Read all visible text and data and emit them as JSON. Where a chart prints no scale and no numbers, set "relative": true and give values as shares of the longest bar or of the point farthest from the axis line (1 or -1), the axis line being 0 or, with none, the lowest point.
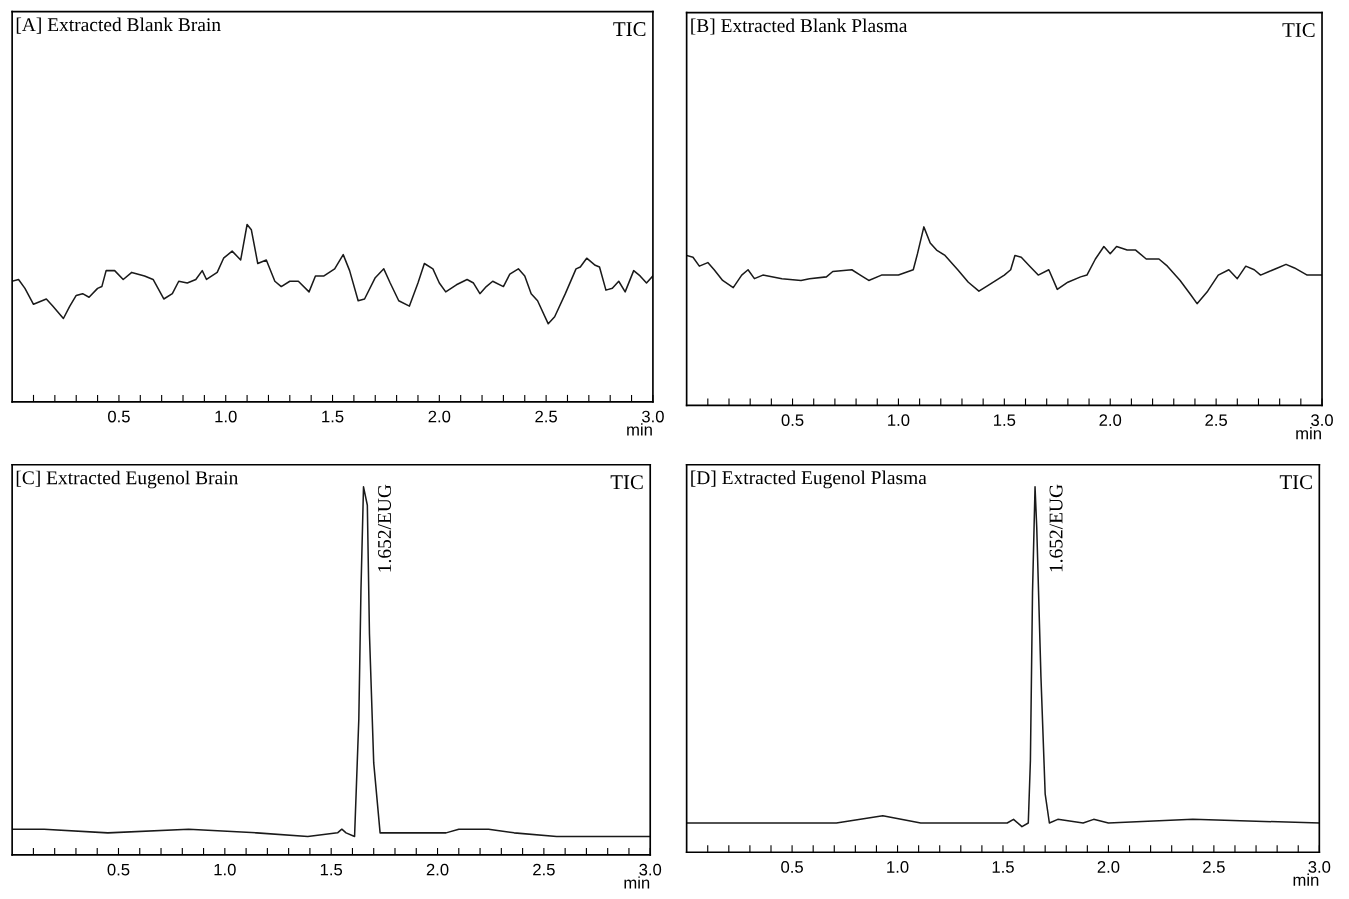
{
  "chart_data": [
    {
      "type": "line",
      "title": "[A] Extracted Blank Brain",
      "annotations": [
        "TIC"
      ],
      "xlabel": "min",
      "relative": true,
      "color": "#1a1a1a",
      "xlim": [
        0,
        3.0
      ],
      "xticks": [
        {
          "value": 0.1,
          "label": null
        },
        {
          "value": 0.2,
          "label": null
        },
        {
          "value": 0.3,
          "label": null
        },
        {
          "value": 0.4,
          "label": null
        },
        0.5,
        {
          "value": 0.6,
          "label": null
        },
        {
          "value": 0.7,
          "label": null
        },
        {
          "value": 0.8,
          "label": null
        },
        {
          "value": 0.9,
          "label": null
        },
        {
          "value": 1,
          "label": "1.0"
        },
        {
          "value": 1.1,
          "label": null
        },
        {
          "value": 1.2,
          "label": null
        },
        {
          "value": 1.3,
          "label": null
        },
        {
          "value": 1.4,
          "label": null
        },
        1.5,
        {
          "value": 1.6,
          "label": null
        },
        {
          "value": 1.7,
          "label": null
        },
        {
          "value": 1.8,
          "label": null
        },
        {
          "value": 1.9,
          "label": null
        },
        {
          "value": 2,
          "label": "2.0"
        },
        {
          "value": 2.1,
          "label": null
        },
        {
          "value": 2.2,
          "label": null
        },
        {
          "value": 2.3,
          "label": null
        },
        {
          "value": 2.4,
          "label": null
        },
        2.5,
        {
          "value": 2.6,
          "label": null
        },
        {
          "value": 2.7,
          "label": null
        },
        {
          "value": 2.8,
          "label": null
        },
        {
          "value": 2.9,
          "label": null
        },
        {
          "value": 3,
          "label": "3.0"
        }
      ],
      "x": [
        0.0,
        0.03,
        0.06,
        0.1,
        0.16,
        0.19,
        0.24,
        0.27,
        0.3,
        0.33,
        0.36,
        0.4,
        0.42,
        0.44,
        0.48,
        0.52,
        0.56,
        0.62,
        0.66,
        0.71,
        0.75,
        0.78,
        0.82,
        0.86,
        0.89,
        0.91,
        0.96,
        0.99,
        1.03,
        1.07,
        1.1,
        1.12,
        1.15,
        1.19,
        1.23,
        1.26,
        1.3,
        1.34,
        1.39,
        1.42,
        1.46,
        1.51,
        1.55,
        1.58,
        1.62,
        1.65,
        1.7,
        1.74,
        1.77,
        1.81,
        1.86,
        1.9,
        1.93,
        1.97,
        2.0,
        2.03,
        2.08,
        2.13,
        2.16,
        2.19,
        2.22,
        2.25,
        2.3,
        2.33,
        2.37,
        2.4,
        2.43,
        2.46,
        2.51,
        2.54,
        2.59,
        2.64,
        2.66,
        2.69,
        2.73,
        2.75,
        2.78,
        2.81,
        2.84,
        2.87,
        2.91,
        2.94,
        2.97,
        3.0
      ],
      "values": [
        0.68,
        0.69,
        0.64,
        0.55,
        0.58,
        0.54,
        0.47,
        0.54,
        0.6,
        0.61,
        0.59,
        0.64,
        0.65,
        0.74,
        0.74,
        0.69,
        0.73,
        0.71,
        0.69,
        0.58,
        0.61,
        0.68,
        0.67,
        0.69,
        0.74,
        0.69,
        0.73,
        0.81,
        0.85,
        0.8,
        1.0,
        0.97,
        0.78,
        0.8,
        0.68,
        0.65,
        0.68,
        0.68,
        0.62,
        0.71,
        0.71,
        0.75,
        0.83,
        0.74,
        0.57,
        0.58,
        0.7,
        0.75,
        0.67,
        0.57,
        0.54,
        0.67,
        0.78,
        0.75,
        0.67,
        0.62,
        0.66,
        0.69,
        0.67,
        0.61,
        0.65,
        0.68,
        0.65,
        0.72,
        0.75,
        0.71,
        0.61,
        0.57,
        0.44,
        0.48,
        0.61,
        0.75,
        0.76,
        0.81,
        0.77,
        0.76,
        0.63,
        0.64,
        0.68,
        0.62,
        0.74,
        0.71,
        0.67,
        0.71
      ]
    },
    {
      "type": "line",
      "title": "[B] Extracted Blank Plasma",
      "annotations": [
        "TIC"
      ],
      "xlabel": "min",
      "relative": true,
      "color": "#1a1a1a",
      "xlim": [
        0,
        3.0
      ],
      "xticks": [
        {
          "value": 0.1,
          "label": null
        },
        {
          "value": 0.2,
          "label": null
        },
        {
          "value": 0.3,
          "label": null
        },
        {
          "value": 0.4,
          "label": null
        },
        0.5,
        {
          "value": 0.6,
          "label": null
        },
        {
          "value": 0.7,
          "label": null
        },
        {
          "value": 0.8,
          "label": null
        },
        {
          "value": 0.9,
          "label": null
        },
        {
          "value": 1,
          "label": "1.0"
        },
        {
          "value": 1.1,
          "label": null
        },
        {
          "value": 1.2,
          "label": null
        },
        {
          "value": 1.3,
          "label": null
        },
        {
          "value": 1.4,
          "label": null
        },
        1.5,
        {
          "value": 1.6,
          "label": null
        },
        {
          "value": 1.7,
          "label": null
        },
        {
          "value": 1.8,
          "label": null
        },
        {
          "value": 1.9,
          "label": null
        },
        {
          "value": 2,
          "label": "2.0"
        },
        {
          "value": 2.1,
          "label": null
        },
        {
          "value": 2.2,
          "label": null
        },
        {
          "value": 2.3,
          "label": null
        },
        {
          "value": 2.4,
          "label": null
        },
        2.5,
        {
          "value": 2.6,
          "label": null
        },
        {
          "value": 2.7,
          "label": null
        },
        {
          "value": 2.8,
          "label": null
        },
        {
          "value": 2.9,
          "label": null
        },
        {
          "value": 3,
          "label": "3.0"
        }
      ],
      "x": [
        0.0,
        0.03,
        0.06,
        0.1,
        0.13,
        0.17,
        0.22,
        0.26,
        0.29,
        0.32,
        0.36,
        0.45,
        0.54,
        0.58,
        0.66,
        0.69,
        0.78,
        0.82,
        0.86,
        0.92,
        1.0,
        1.07,
        1.09,
        1.12,
        1.15,
        1.18,
        1.22,
        1.28,
        1.33,
        1.38,
        1.42,
        1.5,
        1.53,
        1.55,
        1.58,
        1.62,
        1.66,
        1.71,
        1.75,
        1.8,
        1.86,
        1.89,
        1.93,
        1.97,
        2.0,
        2.03,
        2.08,
        2.12,
        2.17,
        2.23,
        2.27,
        2.33,
        2.38,
        2.41,
        2.46,
        2.51,
        2.56,
        2.6,
        2.64,
        2.68,
        2.71,
        2.75,
        2.79,
        2.83,
        2.87,
        2.93,
        2.97,
        3.0
      ],
      "values": [
        0.84,
        0.83,
        0.78,
        0.8,
        0.76,
        0.7,
        0.66,
        0.73,
        0.76,
        0.71,
        0.73,
        0.71,
        0.7,
        0.71,
        0.72,
        0.75,
        0.76,
        0.73,
        0.7,
        0.73,
        0.73,
        0.76,
        0.85,
        1.0,
        0.91,
        0.87,
        0.84,
        0.76,
        0.69,
        0.64,
        0.67,
        0.73,
        0.76,
        0.84,
        0.83,
        0.78,
        0.73,
        0.76,
        0.65,
        0.69,
        0.72,
        0.73,
        0.82,
        0.89,
        0.85,
        0.89,
        0.87,
        0.87,
        0.82,
        0.82,
        0.78,
        0.7,
        0.62,
        0.57,
        0.64,
        0.73,
        0.76,
        0.71,
        0.78,
        0.76,
        0.73,
        0.75,
        0.77,
        0.79,
        0.77,
        0.73,
        0.73,
        0.73
      ]
    },
    {
      "type": "line",
      "title": "[C] Extracted Eugenol Brain",
      "annotations": [
        "TIC",
        {
          "text": "1.652/EUG",
          "x": 1.652,
          "y": 1.0
        }
      ],
      "xlabel": "min",
      "relative": true,
      "color": "#1a1a1a",
      "xlim": [
        0,
        3.0
      ],
      "xticks": [
        {
          "value": 0.1,
          "label": null
        },
        {
          "value": 0.2,
          "label": null
        },
        {
          "value": 0.3,
          "label": null
        },
        {
          "value": 0.4,
          "label": null
        },
        0.5,
        {
          "value": 0.6,
          "label": null
        },
        {
          "value": 0.7,
          "label": null
        },
        {
          "value": 0.8,
          "label": null
        },
        {
          "value": 0.9,
          "label": null
        },
        {
          "value": 1,
          "label": "1.0"
        },
        {
          "value": 1.1,
          "label": null
        },
        {
          "value": 1.2,
          "label": null
        },
        {
          "value": 1.3,
          "label": null
        },
        {
          "value": 1.4,
          "label": null
        },
        1.5,
        {
          "value": 1.6,
          "label": null
        },
        {
          "value": 1.7,
          "label": null
        },
        {
          "value": 1.8,
          "label": null
        },
        {
          "value": 1.9,
          "label": null
        },
        {
          "value": 2,
          "label": "2.0"
        },
        {
          "value": 2.1,
          "label": null
        },
        {
          "value": 2.2,
          "label": null
        },
        {
          "value": 2.3,
          "label": null
        },
        {
          "value": 2.4,
          "label": null
        },
        2.5,
        {
          "value": 2.6,
          "label": null
        },
        {
          "value": 2.7,
          "label": null
        },
        {
          "value": 2.8,
          "label": null
        },
        {
          "value": 2.9,
          "label": null
        },
        {
          "value": 3,
          "label": "3.0"
        }
      ],
      "x": [
        0.0,
        0.15,
        0.45,
        0.83,
        1.15,
        1.39,
        1.53,
        1.55,
        1.57,
        1.61,
        1.63,
        1.64,
        1.652,
        1.67,
        1.68,
        1.7,
        1.73,
        1.86,
        2.04,
        2.1,
        2.24,
        2.36,
        2.56,
        3.0
      ],
      "values": [
        0.07,
        0.07,
        0.06,
        0.07,
        0.06,
        0.05,
        0.06,
        0.07,
        0.06,
        0.05,
        0.37,
        0.72,
        1.0,
        0.95,
        0.6,
        0.25,
        0.06,
        0.06,
        0.06,
        0.07,
        0.07,
        0.06,
        0.05,
        0.05
      ]
    },
    {
      "type": "line",
      "title": "[D] Extracted Eugenol Plasma",
      "annotations": [
        "TIC",
        {
          "text": "1.652/EUG",
          "x": 1.652,
          "y": 1.0
        }
      ],
      "xlabel": "min",
      "relative": true,
      "color": "#1a1a1a",
      "xlim": [
        0,
        3.0
      ],
      "xticks": [
        {
          "value": 0.1,
          "label": null
        },
        {
          "value": 0.2,
          "label": null
        },
        {
          "value": 0.3,
          "label": null
        },
        {
          "value": 0.4,
          "label": null
        },
        0.5,
        {
          "value": 0.6,
          "label": null
        },
        {
          "value": 0.7,
          "label": null
        },
        {
          "value": 0.8,
          "label": null
        },
        {
          "value": 0.9,
          "label": null
        },
        {
          "value": 1,
          "label": "1.0"
        },
        {
          "value": 1.1,
          "label": null
        },
        {
          "value": 1.2,
          "label": null
        },
        {
          "value": 1.3,
          "label": null
        },
        {
          "value": 1.4,
          "label": null
        },
        1.5,
        {
          "value": 1.6,
          "label": null
        },
        {
          "value": 1.7,
          "label": null
        },
        {
          "value": 1.8,
          "label": null
        },
        {
          "value": 1.9,
          "label": null
        },
        {
          "value": 2,
          "label": "2.0"
        },
        {
          "value": 2.1,
          "label": null
        },
        {
          "value": 2.2,
          "label": null
        },
        {
          "value": 2.3,
          "label": null
        },
        {
          "value": 2.4,
          "label": null
        },
        2.5,
        {
          "value": 2.6,
          "label": null
        },
        {
          "value": 2.7,
          "label": null
        },
        {
          "value": 2.8,
          "label": null
        },
        {
          "value": 2.9,
          "label": null
        },
        {
          "value": 3,
          "label": "3.0"
        }
      ],
      "x": [
        0.0,
        0.26,
        0.48,
        0.71,
        0.93,
        1.11,
        1.52,
        1.55,
        1.59,
        1.62,
        1.63,
        1.64,
        1.652,
        1.66,
        1.68,
        1.7,
        1.72,
        1.76,
        1.88,
        1.93,
        2.0,
        2.4,
        3.0
      ],
      "values": [
        0.08,
        0.08,
        0.08,
        0.08,
        0.1,
        0.08,
        0.08,
        0.09,
        0.07,
        0.08,
        0.25,
        0.71,
        1.0,
        0.89,
        0.48,
        0.16,
        0.08,
        0.09,
        0.08,
        0.09,
        0.08,
        0.09,
        0.08
      ]
    }
  ]
}
